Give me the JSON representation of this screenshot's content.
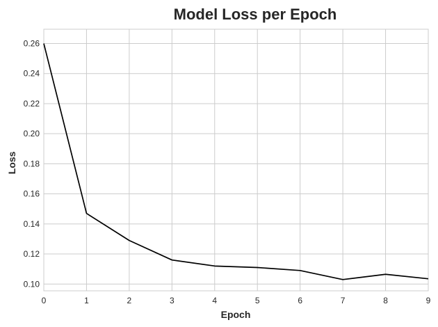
{
  "chart_data": {
    "type": "line",
    "title": "Model Loss per Epoch",
    "xlabel": "Epoch",
    "ylabel": "Loss",
    "x": [
      0,
      1,
      2,
      3,
      4,
      5,
      6,
      7,
      8,
      9
    ],
    "series": [
      {
        "values": [
          0.26,
          0.147,
          0.129,
          0.116,
          0.112,
          0.111,
          0.109,
          0.103,
          0.1065,
          0.1035
        ],
        "color": "#000000"
      }
    ],
    "xlim": [
      0,
      9
    ],
    "ylim": [
      0.0955,
      0.2695
    ],
    "x_ticks": [
      "0",
      "1",
      "2",
      "3",
      "4",
      "5",
      "6",
      "7",
      "8",
      "9"
    ],
    "y_ticks": [
      "0.10",
      "0.12",
      "0.14",
      "0.16",
      "0.18",
      "0.20",
      "0.22",
      "0.24",
      "0.26"
    ],
    "grid": true,
    "legend": "none"
  }
}
